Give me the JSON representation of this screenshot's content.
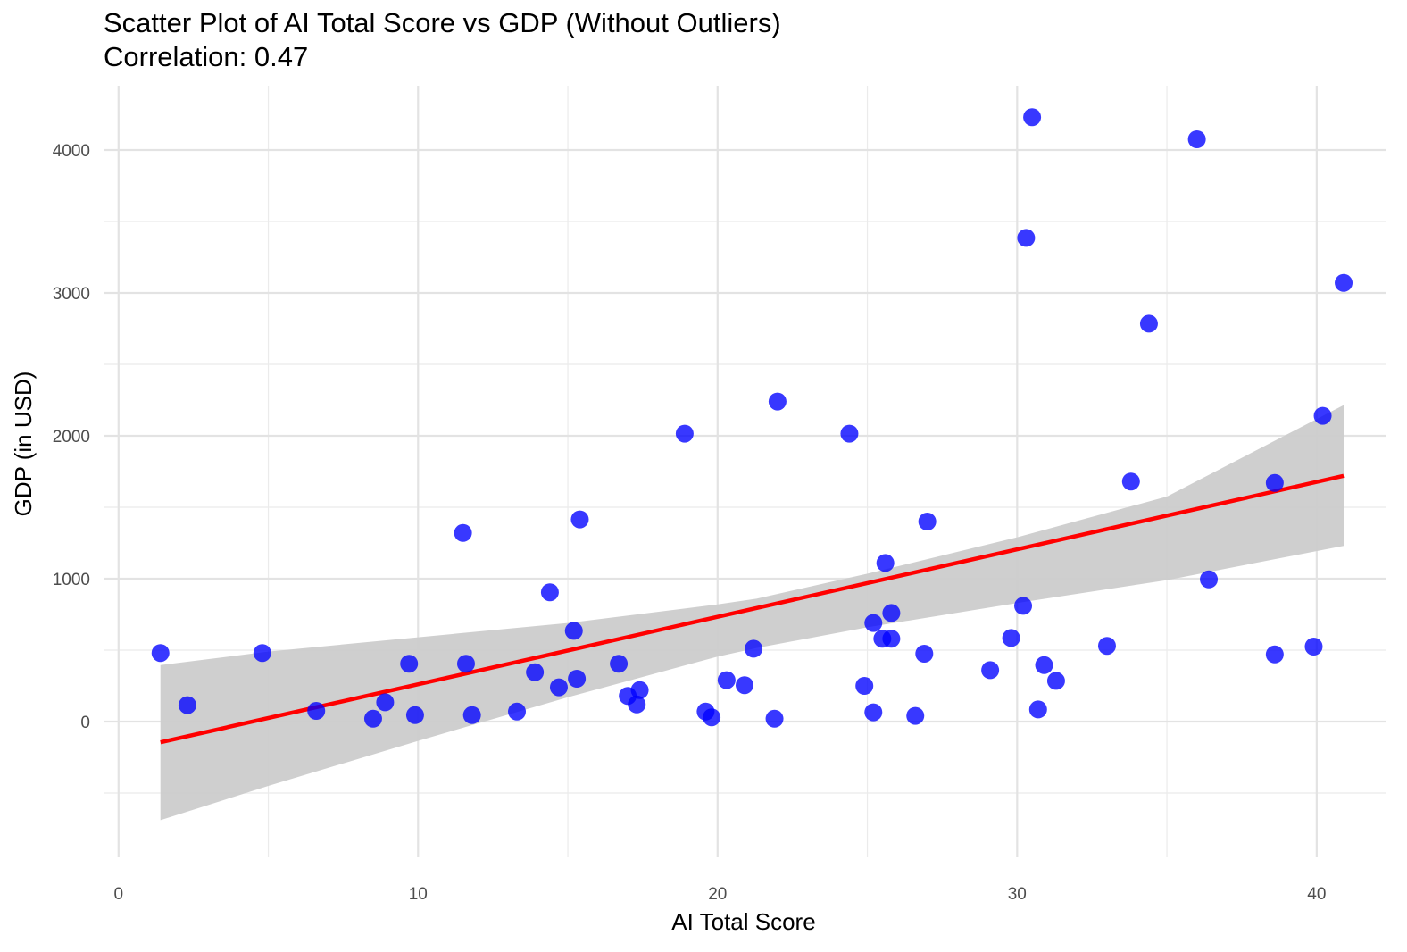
{
  "title": "Scatter Plot of AI Total Score vs GDP (Without Outliers)",
  "subtitle": "Correlation:  0.47",
  "chart_data": {
    "type": "scatter",
    "title": "Scatter Plot of AI Total Score vs GDP (Without Outliers)",
    "subtitle": "Correlation:  0.47",
    "xlabel": "AI Total Score",
    "ylabel": "GDP (in USD)",
    "xlim": [
      -0.5,
      42.3
    ],
    "ylim": [
      -950,
      4450
    ],
    "x_ticks": [
      0,
      10,
      20,
      30,
      40
    ],
    "y_ticks": [
      0,
      1000,
      2000,
      3000,
      4000
    ],
    "x_tick_labels": [
      "0",
      "10",
      "20",
      "30",
      "40"
    ],
    "y_tick_labels": [
      "0",
      "1000",
      "2000",
      "3000",
      "4000"
    ],
    "grid": true,
    "legend": "none",
    "point_color": "#0000ff",
    "line_color": "#ff0000",
    "band_color": "#cccccc",
    "points": [
      {
        "x": 1.4,
        "y": 480
      },
      {
        "x": 2.3,
        "y": 115
      },
      {
        "x": 4.8,
        "y": 480
      },
      {
        "x": 6.6,
        "y": 75
      },
      {
        "x": 8.5,
        "y": 20
      },
      {
        "x": 8.9,
        "y": 135
      },
      {
        "x": 9.7,
        "y": 405
      },
      {
        "x": 9.9,
        "y": 45
      },
      {
        "x": 11.5,
        "y": 1320
      },
      {
        "x": 11.6,
        "y": 405
      },
      {
        "x": 11.8,
        "y": 45
      },
      {
        "x": 13.3,
        "y": 70
      },
      {
        "x": 13.9,
        "y": 345
      },
      {
        "x": 14.4,
        "y": 905
      },
      {
        "x": 14.7,
        "y": 240
      },
      {
        "x": 15.2,
        "y": 635
      },
      {
        "x": 15.3,
        "y": 300
      },
      {
        "x": 15.4,
        "y": 1415
      },
      {
        "x": 16.7,
        "y": 405
      },
      {
        "x": 17.0,
        "y": 180
      },
      {
        "x": 17.3,
        "y": 120
      },
      {
        "x": 17.4,
        "y": 220
      },
      {
        "x": 18.9,
        "y": 2015
      },
      {
        "x": 19.6,
        "y": 70
      },
      {
        "x": 19.8,
        "y": 30
      },
      {
        "x": 20.3,
        "y": 290
      },
      {
        "x": 20.9,
        "y": 255
      },
      {
        "x": 21.2,
        "y": 510
      },
      {
        "x": 21.9,
        "y": 20
      },
      {
        "x": 22.0,
        "y": 2240
      },
      {
        "x": 24.4,
        "y": 2015
      },
      {
        "x": 24.9,
        "y": 250
      },
      {
        "x": 25.2,
        "y": 690
      },
      {
        "x": 25.2,
        "y": 65
      },
      {
        "x": 25.5,
        "y": 580
      },
      {
        "x": 25.6,
        "y": 1110
      },
      {
        "x": 25.8,
        "y": 760
      },
      {
        "x": 25.8,
        "y": 580
      },
      {
        "x": 26.6,
        "y": 40
      },
      {
        "x": 26.9,
        "y": 475
      },
      {
        "x": 27.0,
        "y": 1400
      },
      {
        "x": 29.1,
        "y": 360
      },
      {
        "x": 29.8,
        "y": 585
      },
      {
        "x": 30.2,
        "y": 810
      },
      {
        "x": 30.3,
        "y": 3385
      },
      {
        "x": 30.5,
        "y": 4230
      },
      {
        "x": 30.7,
        "y": 85
      },
      {
        "x": 30.9,
        "y": 395
      },
      {
        "x": 31.3,
        "y": 285
      },
      {
        "x": 33.0,
        "y": 530
      },
      {
        "x": 33.8,
        "y": 1680
      },
      {
        "x": 34.4,
        "y": 2785
      },
      {
        "x": 36.0,
        "y": 4075
      },
      {
        "x": 36.4,
        "y": 995
      },
      {
        "x": 38.6,
        "y": 1670
      },
      {
        "x": 38.6,
        "y": 470
      },
      {
        "x": 39.9,
        "y": 525
      },
      {
        "x": 40.2,
        "y": 2140
      },
      {
        "x": 40.9,
        "y": 3070
      }
    ],
    "regression_line": {
      "x": [
        1.4,
        40.9
      ],
      "y": [
        -145,
        1720
      ]
    },
    "confidence_band": {
      "x": [
        1.4,
        5,
        10,
        15,
        20,
        21.3,
        25,
        30,
        35,
        40.9
      ],
      "lower": [
        -690,
        -450,
        -135,
        170,
        455,
        515,
        660,
        830,
        990,
        1230
      ],
      "upper": [
        395,
        490,
        590,
        690,
        820,
        860,
        1035,
        1290,
        1575,
        2215
      ]
    }
  }
}
